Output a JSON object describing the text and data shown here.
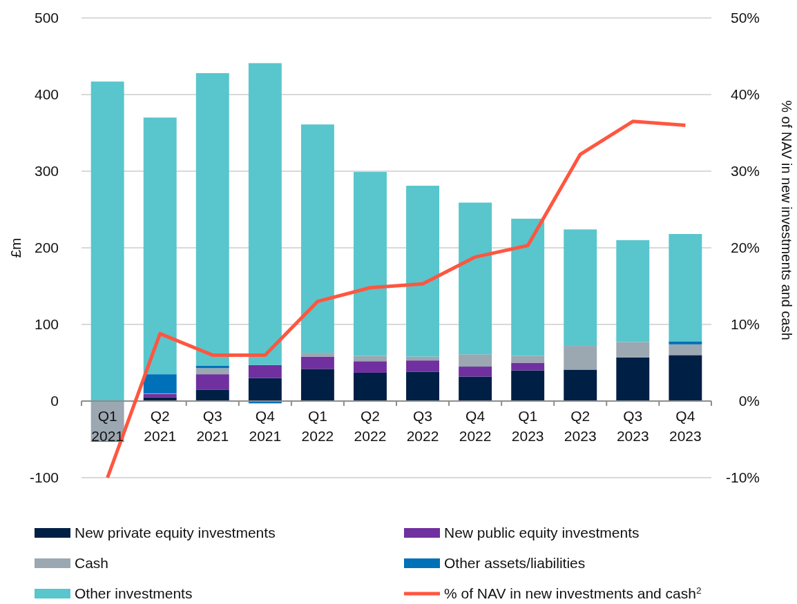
{
  "chart_data": {
    "type": "bar",
    "stacked": true,
    "categories": [
      "Q1 2021",
      "Q2 2021",
      "Q3 2021",
      "Q4 2021",
      "Q1 2022",
      "Q2 2022",
      "Q3 2022",
      "Q4 2022",
      "Q1 2023",
      "Q2 2023",
      "Q3 2023",
      "Q4 2023"
    ],
    "series": [
      {
        "name": "New private equity investments",
        "color": "#001f45",
        "values": [
          0,
          5,
          15,
          30,
          42,
          37,
          38,
          32,
          40,
          41,
          57,
          60
        ]
      },
      {
        "name": "New public equity investments",
        "color": "#7030a0",
        "values": [
          0,
          4,
          20,
          17,
          16,
          15,
          15,
          13,
          10,
          0,
          0,
          0
        ]
      },
      {
        "name": "Cash",
        "color": "#9ba7b1",
        "values": [
          -52,
          1,
          8,
          0,
          5,
          7,
          5,
          16,
          9,
          31,
          20,
          14
        ]
      },
      {
        "name": "Other assets/liabilities",
        "color": "#0070b8",
        "values": [
          -1,
          25,
          3,
          -3,
          0,
          0,
          null,
          0,
          0,
          0,
          0,
          4
        ]
      },
      {
        "name": "Other investments",
        "color": "#58c6cc",
        "values": [
          417,
          335,
          382,
          394,
          298,
          240,
          223,
          198,
          179,
          152,
          133,
          140
        ]
      },
      {
        "name": "% of NAV in new investments and cash$^{2}$",
        "type": "line",
        "axis": "y2",
        "color": "#ff5640",
        "values": [
          -10,
          8.8,
          6,
          6,
          13,
          14.8,
          15.3,
          18.8,
          20.3,
          32.2,
          36.5,
          36
        ]
      }
    ],
    "ylabel": "£m",
    "y2label": "% of NAV in new investments and cash",
    "ylim": [
      -100,
      500
    ],
    "yticks": [
      -100,
      0,
      100,
      200,
      300,
      400,
      500
    ],
    "y2lim": [
      -10,
      50
    ],
    "y2ticks": [
      {
        "value": -10,
        "label": "-10%"
      },
      {
        "value": 0,
        "label": "0%"
      },
      {
        "value": 10,
        "label": "10%"
      },
      {
        "value": 20,
        "label": "20%"
      },
      {
        "value": 30,
        "label": "30%"
      },
      {
        "value": 40,
        "label": "40%"
      },
      {
        "value": 50,
        "label": "50%"
      }
    ],
    "grid": "y",
    "legend": "bottom"
  }
}
